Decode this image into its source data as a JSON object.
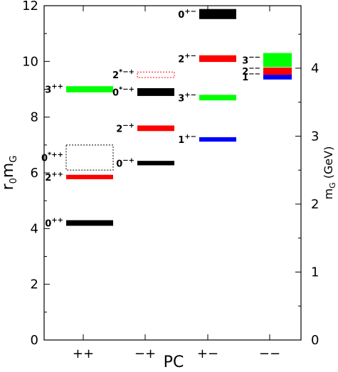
{
  "chart_data": {
    "type": "bar",
    "title": "",
    "xlabel": "PC",
    "ylabel_left": "r0mG",
    "ylabel_right": "mG (GeV)",
    "ylim": [
      0,
      12
    ],
    "right_ylim_gev": [
      0,
      4.92
    ],
    "categories": [
      "++",
      "−+",
      "+−",
      "−−"
    ],
    "left_ticks": [
      0,
      2,
      4,
      6,
      8,
      10,
      12
    ],
    "right_ticks": [
      0,
      1,
      2,
      3,
      4
    ],
    "states": [
      {
        "label": "0++",
        "category": "++",
        "value": 4.2,
        "height": 0.2,
        "color": "#000000",
        "style": "solid"
      },
      {
        "label": "2++",
        "category": "++",
        "value": 5.85,
        "height": 0.16,
        "color": "#ff0000",
        "style": "solid"
      },
      {
        "label": "0*++",
        "category": "++",
        "value": 6.55,
        "height": 0.9,
        "color": "#000000",
        "style": "dotted"
      },
      {
        "label": "3++",
        "category": "++",
        "value": 9.0,
        "height": 0.22,
        "color": "#00ff00",
        "style": "solid"
      },
      {
        "label": "0−+",
        "category": "−+",
        "value": 6.35,
        "height": 0.16,
        "color": "#000000",
        "style": "solid"
      },
      {
        "label": "2−+",
        "category": "−+",
        "value": 7.6,
        "height": 0.2,
        "color": "#ff0000",
        "style": "solid"
      },
      {
        "label": "0*−+",
        "category": "−+",
        "value": 8.9,
        "height": 0.28,
        "color": "#000000",
        "style": "solid"
      },
      {
        "label": "2*−+",
        "category": "−+",
        "value": 9.52,
        "height": 0.2,
        "color": "#ff0000",
        "style": "dotted"
      },
      {
        "label": "1+−",
        "category": "+−",
        "value": 7.2,
        "height": 0.16,
        "color": "#0000ff",
        "style": "solid"
      },
      {
        "label": "3+−",
        "category": "+−",
        "value": 8.7,
        "height": 0.2,
        "color": "#00ff00",
        "style": "solid"
      },
      {
        "label": "2+−",
        "category": "+−",
        "value": 10.1,
        "height": 0.24,
        "color": "#ff0000",
        "style": "solid",
        "label_color": "#ff00ff"
      },
      {
        "label": "0+−",
        "category": "+−",
        "value": 11.7,
        "height": 0.36,
        "color": "#000000",
        "style": "solid",
        "label_color": "#ff00ff"
      },
      {
        "label": "1−−",
        "category": "−−",
        "value": 9.45,
        "height": 0.2,
        "color": "#0000ff",
        "style": "solid"
      },
      {
        "label": "2−−",
        "category": "−−",
        "value": 9.65,
        "height": 0.26,
        "color": "#ff0000",
        "style": "solid"
      },
      {
        "label": "3−−",
        "category": "−−",
        "value": 10.05,
        "height": 0.5,
        "color": "#00ff00",
        "style": "solid"
      }
    ]
  }
}
